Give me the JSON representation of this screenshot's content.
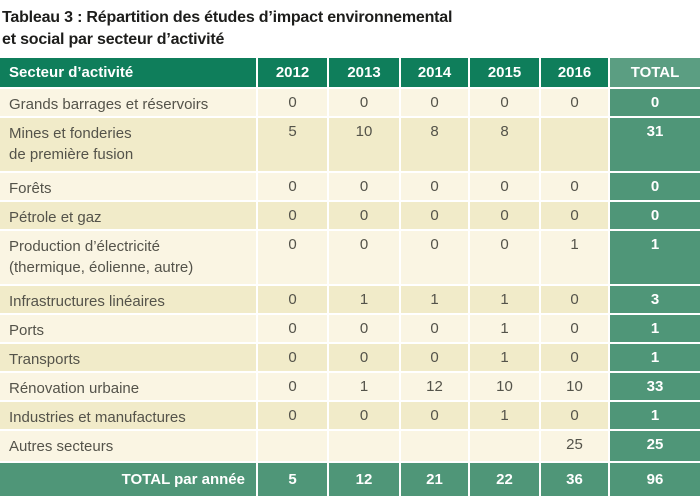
{
  "title": {
    "line1": "Tableau 3 : Répartition des études d’impact environnemental",
    "line2": "et social par secteur d’activité"
  },
  "colors": {
    "header_green": "#0f7e5b",
    "total_header_green": "#5b9e82",
    "accent_green": "#4f9678",
    "row_light": "#faf5e3",
    "row_dark": "#f1ebc9",
    "body_text": "#54534a",
    "title_text": "#1d1d1b",
    "header_text": "#ffffff"
  },
  "table": {
    "columns": [
      "Secteur d’activité",
      "2012",
      "2013",
      "2014",
      "2015",
      "2016",
      "TOTAL"
    ],
    "rows": [
      {
        "sector": "Grands barrages et réservoirs",
        "values": [
          "0",
          "0",
          "0",
          "0",
          "0"
        ],
        "total": "0"
      },
      {
        "sector": "Mines et fonderies\nde première fusion",
        "values": [
          "5",
          "10",
          "8",
          "8",
          ""
        ],
        "total": "31"
      },
      {
        "sector": "Forêts",
        "values": [
          "0",
          "0",
          "0",
          "0",
          "0"
        ],
        "total": "0"
      },
      {
        "sector": "Pétrole et gaz",
        "values": [
          "0",
          "0",
          "0",
          "0",
          "0"
        ],
        "total": "0"
      },
      {
        "sector": "Production d’électricité\n(thermique, éolienne, autre)",
        "values": [
          "0",
          "0",
          "0",
          "0",
          "1"
        ],
        "total": "1"
      },
      {
        "sector": "Infrastructures linéaires",
        "values": [
          "0",
          "1",
          "1",
          "1",
          "0"
        ],
        "total": "3"
      },
      {
        "sector": "Ports",
        "values": [
          "0",
          "0",
          "0",
          "1",
          "0"
        ],
        "total": "1"
      },
      {
        "sector": "Transports",
        "values": [
          "0",
          "0",
          "0",
          "1",
          "0"
        ],
        "total": "1"
      },
      {
        "sector": "Rénovation urbaine",
        "values": [
          "0",
          "1",
          "12",
          "10",
          "10"
        ],
        "total": "33"
      },
      {
        "sector": "Industries et manufactures",
        "values": [
          "0",
          "0",
          "0",
          "1",
          "0"
        ],
        "total": "1"
      },
      {
        "sector": "Autres secteurs",
        "values": [
          "",
          "",
          "",
          "",
          "25"
        ],
        "total": "25"
      }
    ],
    "footer": {
      "label": "TOTAL par année",
      "values": [
        "5",
        "12",
        "21",
        "22",
        "36"
      ],
      "total": "96"
    }
  }
}
